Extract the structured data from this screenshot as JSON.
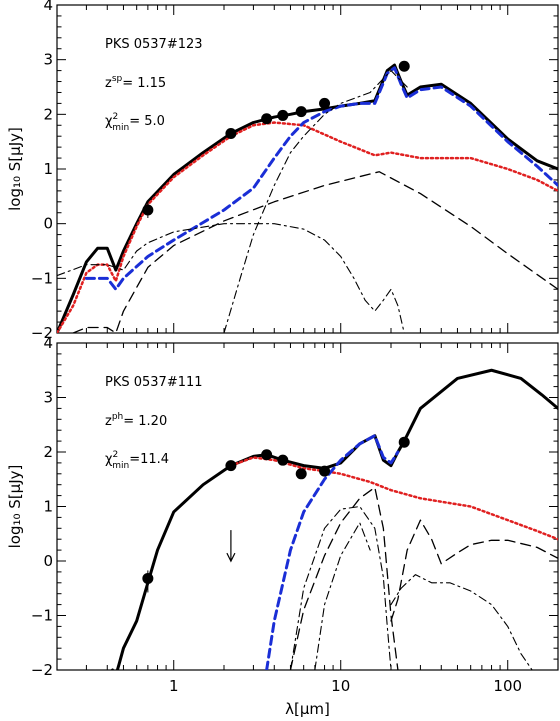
{
  "chart_data": {
    "type": "line",
    "xscale": "log",
    "xlabel": "λ[μm]",
    "ylabel": "log₁₀ S[μJy]",
    "xlim": [
      0.2,
      200
    ],
    "xticks": [
      1,
      10,
      100
    ],
    "yticks_top": [
      -2,
      -1,
      0,
      1,
      2,
      3,
      4
    ],
    "yticks_bottom": [
      -2,
      -1,
      0,
      1,
      2,
      3,
      4
    ],
    "panels": [
      {
        "name": "PKS 0537#123",
        "z_label": "z",
        "z_sup": "sp",
        "z_value": "=   1.15",
        "chi_label": "χ",
        "chi_sup": "2",
        "chi_sub": "min",
        "chi_value": "=  5.0",
        "ylim": [
          -2,
          4
        ],
        "series": [
          {
            "style": "total",
            "color": "#000000",
            "x": [
              0.2,
              0.25,
              0.3,
              0.35,
              0.4,
              0.45,
              0.5,
              0.6,
              0.7,
              1.0,
              1.5,
              2.2,
              3,
              4,
              5,
              6,
              8,
              10,
              13,
              16,
              19,
              21,
              23,
              25,
              30,
              40,
              60,
              100,
              150,
              200
            ],
            "y": [
              -2,
              -1.3,
              -0.7,
              -0.45,
              -0.45,
              -0.85,
              -0.5,
              0,
              0.4,
              0.9,
              1.3,
              1.65,
              1.85,
              1.95,
              2.0,
              2.05,
              2.1,
              2.15,
              2.2,
              2.25,
              2.8,
              2.9,
              2.6,
              2.35,
              2.5,
              2.55,
              2.2,
              1.55,
              1.15,
              1.0
            ]
          },
          {
            "style": "stellar",
            "color": "#e02020",
            "x": [
              0.2,
              0.25,
              0.3,
              0.35,
              0.4,
              0.45,
              0.5,
              0.6,
              0.7,
              1.0,
              1.5,
              2.2,
              3,
              4,
              6,
              10,
              16,
              20,
              30,
              60,
              100,
              150,
              200
            ],
            "y": [
              -2,
              -1.5,
              -0.9,
              -0.75,
              -0.75,
              -1.05,
              -0.6,
              -0.05,
              0.35,
              0.85,
              1.25,
              1.6,
              1.8,
              1.85,
              1.8,
              1.5,
              1.25,
              1.3,
              1.2,
              1.2,
              1.0,
              0.8,
              0.6
            ]
          },
          {
            "style": "agn-torus",
            "color": "#1a2ed6",
            "x": [
              0.3,
              0.4,
              0.45,
              0.5,
              0.7,
              1.0,
              2,
              3,
              4,
              5,
              6,
              8,
              10,
              13,
              16,
              19,
              21,
              23,
              25,
              30,
              40,
              60,
              100,
              150,
              200
            ],
            "y": [
              -1.0,
              -1.0,
              -1.2,
              -1.0,
              -0.6,
              -0.3,
              0.25,
              0.65,
              1.2,
              1.6,
              1.85,
              2.05,
              2.15,
              2.2,
              2.2,
              2.75,
              2.85,
              2.55,
              2.3,
              2.45,
              2.5,
              2.15,
              1.5,
              1.05,
              0.7
            ]
          },
          {
            "style": "dashed",
            "color": "#000000",
            "x": [
              0.25,
              0.3,
              0.4,
              0.45,
              0.5,
              0.7,
              1.0,
              2,
              4,
              8,
              17,
              30,
              60,
              100,
              200
            ],
            "y": [
              -2,
              -1.9,
              -1.9,
              -2,
              -1.6,
              -0.8,
              -0.4,
              0.05,
              0.4,
              0.7,
              0.95,
              0.55,
              -0.05,
              -0.55,
              -1.2
            ]
          },
          {
            "style": "dashdot",
            "color": "#000000",
            "x": [
              0.2,
              0.3,
              0.4,
              0.5,
              0.6,
              0.7,
              1.0,
              2,
              4,
              6,
              8,
              10,
              12,
              14,
              16,
              18,
              20,
              22,
              24
            ],
            "y": [
              -0.95,
              -0.75,
              -0.75,
              -0.85,
              -0.5,
              -0.35,
              -0.15,
              0,
              0.0,
              -0.1,
              -0.3,
              -0.6,
              -1.0,
              -1.4,
              -1.6,
              -1.4,
              -1.2,
              -1.5,
              -2
            ]
          },
          {
            "style": "dashdot",
            "color": "#000000",
            "x": [
              2.0,
              2.5,
              3.0,
              4,
              5,
              6,
              8,
              10,
              15,
              20,
              25
            ],
            "y": [
              -2,
              -1.0,
              -0.2,
              0.7,
              1.3,
              1.6,
              2.0,
              2.2,
              2.4,
              2.8,
              2.5
            ]
          }
        ],
        "observations": [
          {
            "x": 0.7,
            "y": 0.25
          },
          {
            "x": 2.2,
            "y": 1.65
          },
          {
            "x": 3.6,
            "y": 1.92
          },
          {
            "x": 4.5,
            "y": 1.98
          },
          {
            "x": 5.8,
            "y": 2.05
          },
          {
            "x": 8.0,
            "y": 2.2
          },
          {
            "x": 24.0,
            "y": 2.88
          }
        ],
        "upper_limits": []
      },
      {
        "name": "PKS 0537#111",
        "z_label": "z",
        "z_sup": "ph",
        "z_value": "=   1.20",
        "chi_label": "χ",
        "chi_sup": "2",
        "chi_sub": "min",
        "chi_value": "=11.4",
        "ylim": [
          -2,
          4
        ],
        "series": [
          {
            "style": "total",
            "color": "#000000",
            "x": [
              0.43,
              0.45,
              0.47,
              0.5,
              0.6,
              0.7,
              0.8,
              1.0,
              1.5,
              2.2,
              3,
              3.6,
              4.5,
              6,
              8,
              10,
              13,
              16,
              18,
              20,
              22,
              24,
              30,
              50,
              80,
              120,
              160,
              200
            ],
            "y": [
              -2,
              -2.1,
              -1.9,
              -1.6,
              -1.1,
              -0.4,
              0.2,
              0.9,
              1.4,
              1.75,
              1.92,
              1.95,
              1.85,
              1.75,
              1.7,
              1.8,
              2.15,
              2.3,
              1.85,
              1.75,
              2.0,
              2.2,
              2.8,
              3.35,
              3.5,
              3.35,
              3.05,
              2.8
            ]
          },
          {
            "style": "stellar",
            "color": "#e02020",
            "x": [
              2.2,
              3,
              4,
              6,
              8,
              10,
              15,
              20,
              30,
              60,
              100,
              150,
              200
            ],
            "y": [
              1.75,
              1.9,
              1.85,
              1.7,
              1.65,
              1.6,
              1.45,
              1.3,
              1.15,
              1.0,
              0.75,
              0.55,
              0.4
            ]
          },
          {
            "style": "agn-torus",
            "color": "#1a2ed6",
            "x": [
              3.6,
              4,
              5,
              6,
              8,
              10,
              13,
              16,
              18,
              20,
              22
            ],
            "y": [
              -2,
              -1.1,
              0.2,
              0.9,
              1.5,
              1.85,
              2.15,
              2.3,
              1.9,
              1.8,
              2.0
            ]
          },
          {
            "style": "dashed",
            "color": "#000000",
            "x": [
              5,
              6,
              8,
              10,
              13,
              16,
              18,
              20,
              22
            ],
            "y": [
              -2,
              -0.9,
              0.1,
              0.7,
              1.15,
              1.35,
              0.6,
              -1.0,
              -2
            ]
          },
          {
            "style": "dashed",
            "color": "#000000",
            "x": [
              20,
              22,
              25,
              30,
              35,
              40,
              50,
              60,
              80,
              100,
              150,
              200
            ],
            "y": [
              -1.1,
              -0.7,
              0.2,
              0.75,
              0.4,
              -0.05,
              0.15,
              0.3,
              0.38,
              0.38,
              0.25,
              0.05
            ]
          },
          {
            "style": "dashdot",
            "color": "#000000",
            "x": [
              5,
              6,
              8,
              10,
              13,
              16,
              18,
              19,
              20
            ],
            "y": [
              -2,
              -0.5,
              0.6,
              0.95,
              1.0,
              0.6,
              -0.3,
              -1.2,
              -2
            ]
          },
          {
            "style": "dashdot",
            "color": "#000000",
            "x": [
              7,
              8,
              10,
              13,
              15
            ],
            "y": [
              -2,
              -0.8,
              0.1,
              0.7,
              0.2
            ]
          },
          {
            "style": "dashdot",
            "color": "#000000",
            "x": [
              20,
              23,
              28,
              35,
              45,
              60,
              80,
              100,
              120,
              140
            ],
            "y": [
              -0.8,
              -0.5,
              -0.25,
              -0.4,
              -0.4,
              -0.55,
              -0.8,
              -1.2,
              -1.7,
              -2
            ]
          }
        ],
        "observations": [
          {
            "x": 2.2,
            "y": 1.75
          },
          {
            "x": 3.6,
            "y": 1.95
          },
          {
            "x": 4.5,
            "y": 1.85
          },
          {
            "x": 5.8,
            "y": 1.6
          },
          {
            "x": 8.0,
            "y": 1.65
          },
          {
            "x": 24.0,
            "y": 2.18
          },
          {
            "x": 0.7,
            "y": -0.32
          }
        ],
        "upper_limits": [
          {
            "x": 2.2,
            "y": 0.2
          }
        ]
      }
    ]
  }
}
